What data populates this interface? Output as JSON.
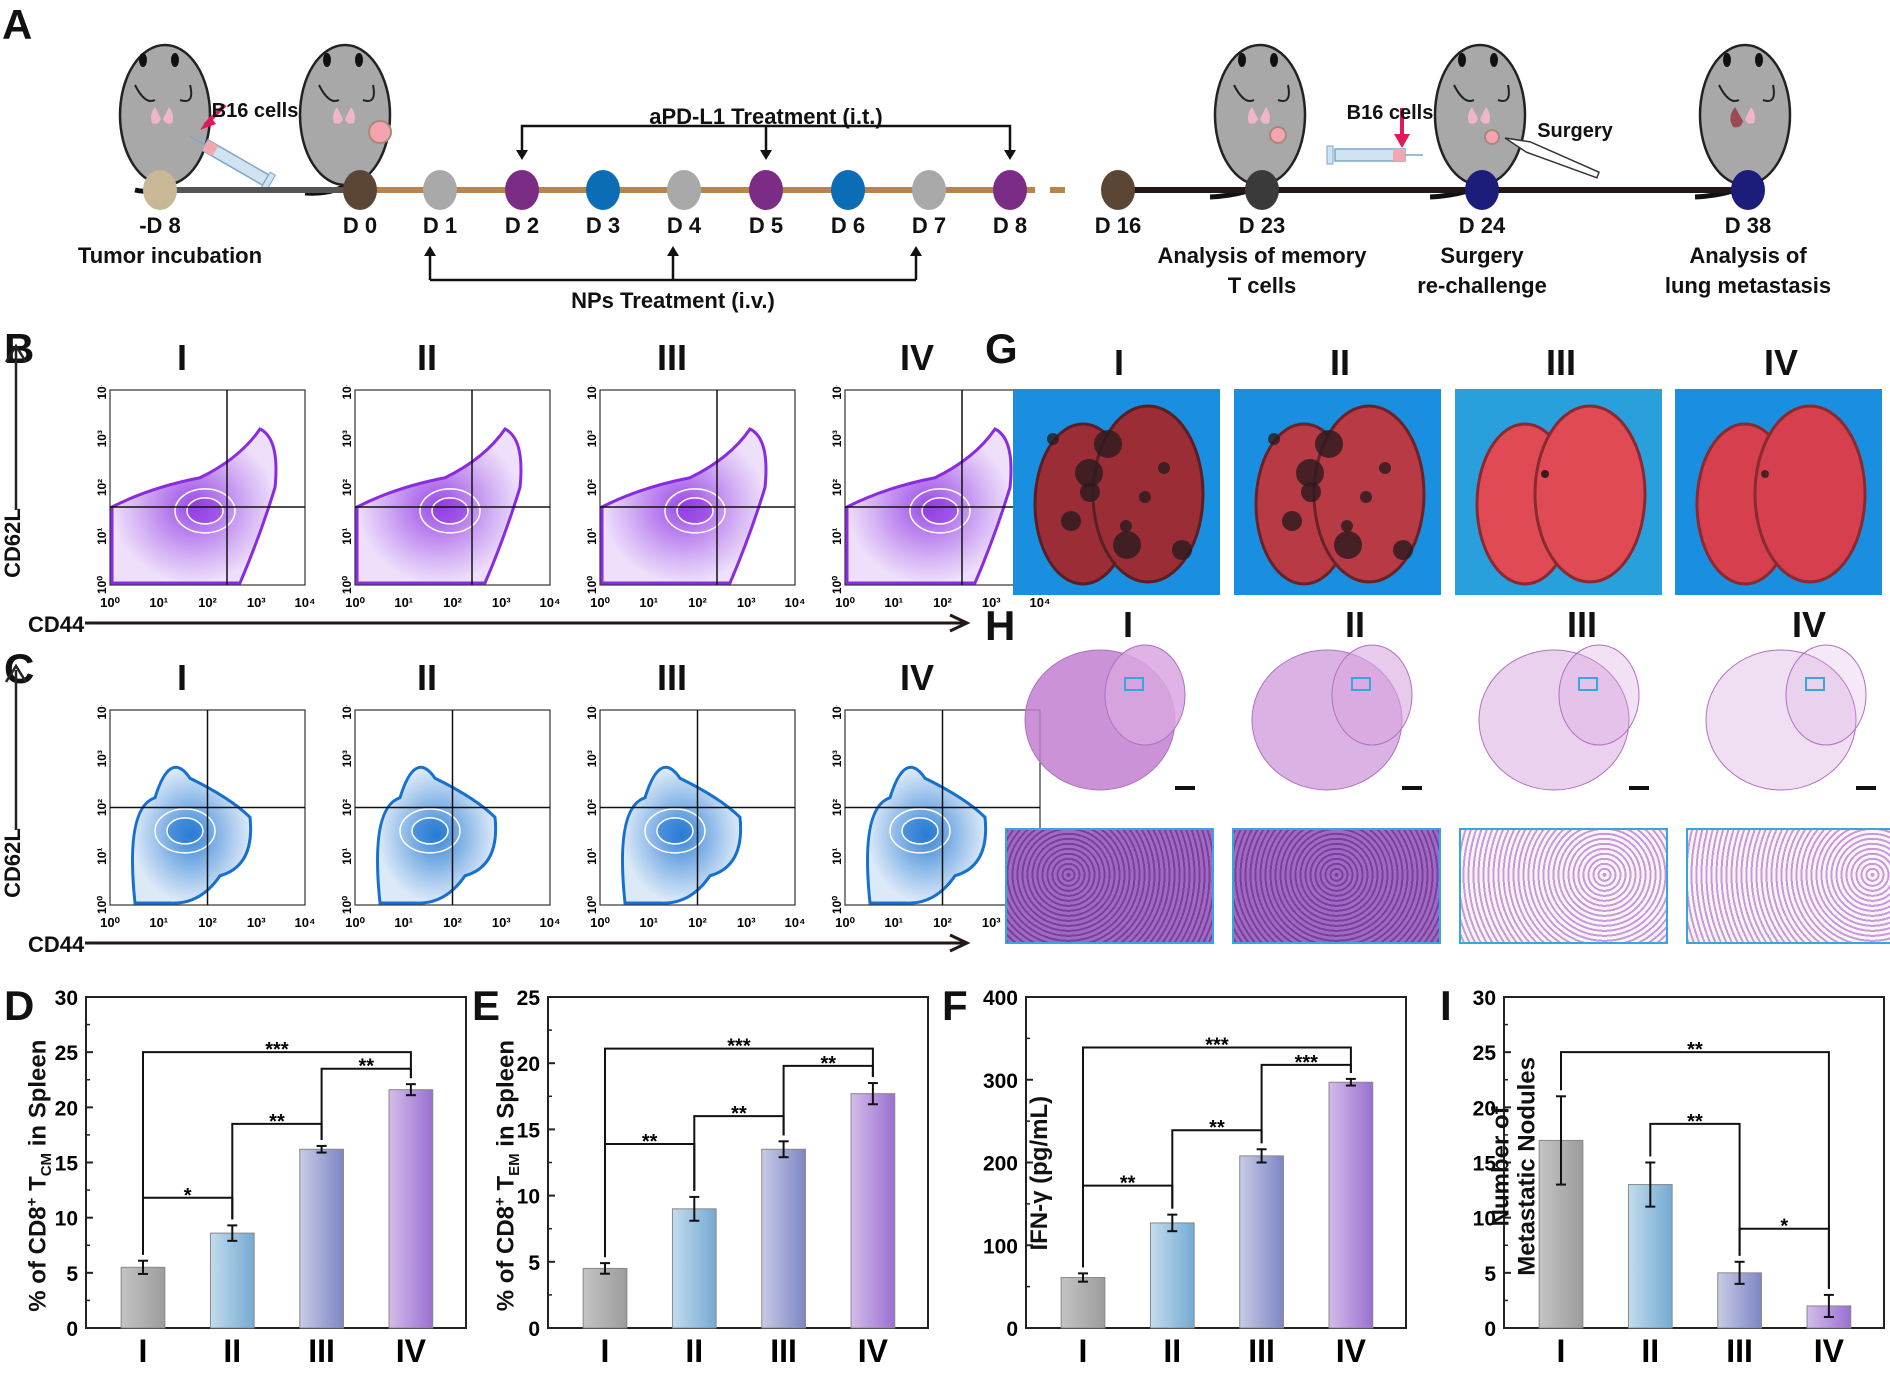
{
  "panel_labels": {
    "A": "A",
    "B": "B",
    "C": "C",
    "D": "D",
    "E": "E",
    "F": "F",
    "G": "G",
    "H": "H",
    "I": "I"
  },
  "groups": [
    "I",
    "II",
    "III",
    "IV"
  ],
  "timeline": {
    "points": [
      {
        "day": "-D 8",
        "color": "#c8b896",
        "desc": [
          "Tumor incubation"
        ]
      },
      {
        "day": "D 0",
        "color": "#5b4636"
      },
      {
        "day": "D 1",
        "color": "#a9a9a9"
      },
      {
        "day": "D 2",
        "color": "#7b2d86"
      },
      {
        "day": "D 3",
        "color": "#0b6db5"
      },
      {
        "day": "D 4",
        "color": "#a9a9a9"
      },
      {
        "day": "D 5",
        "color": "#7b2d86"
      },
      {
        "day": "D 6",
        "color": "#0b6db5"
      },
      {
        "day": "D 7",
        "color": "#a9a9a9"
      },
      {
        "day": "D 8",
        "color": "#7b2d86"
      },
      {
        "day": "D 16",
        "color": "#5b4636"
      },
      {
        "day": "D 23",
        "color": "#3a3a3a",
        "desc": [
          "Analysis of memory",
          "T cells"
        ]
      },
      {
        "day": "D 24",
        "color": "#1c1c7a",
        "desc": [
          "Surgery",
          "re-challenge"
        ]
      },
      {
        "day": "D 38",
        "color": "#1c1c7a",
        "desc": [
          "Analysis of",
          "lung metastasis"
        ]
      }
    ],
    "apdl1_label": "aPD-L1 Treatment (i.t.)",
    "nps_label": "NPs Treatment (i.v.)",
    "b16_label_1": "B16 cells",
    "b16_label_2": "B16 cells",
    "surgery_label": "Surgery",
    "line_colors": {
      "pre": "#555555",
      "treatment": "#b5854a",
      "post": "#231815"
    }
  },
  "flow": {
    "y_label": "CD62L",
    "x_label": "CD44",
    "ticks": [
      "10⁰",
      "10¹",
      "10²",
      "10³",
      "10⁴"
    ],
    "B_color": "#8a2be2",
    "C_color": "#1670d0"
  },
  "chart_data": [
    {
      "id": "D",
      "type": "bar",
      "categories": [
        "I",
        "II",
        "III",
        "IV"
      ],
      "values": [
        5.5,
        8.6,
        16.2,
        21.6
      ],
      "errors": [
        0.6,
        0.7,
        0.3,
        0.5
      ],
      "ylabel": "% of CD8⁺ T_CM in Spleen",
      "ylabel_main": "% of CD8",
      "ylabel_sup": "+",
      "ylabel_T": " T",
      "ylabel_sub": "CM",
      "ylabel_tail": " in Spleen",
      "ylim": [
        0,
        30
      ],
      "yticks": [
        0,
        5,
        10,
        15,
        20,
        25,
        30
      ],
      "significance": [
        {
          "from": 0,
          "to": 1,
          "y": 11.8,
          "label": "*"
        },
        {
          "from": 1,
          "to": 2,
          "y": 18.5,
          "label": "**"
        },
        {
          "from": 2,
          "to": 3,
          "y": 23.5,
          "label": "**"
        },
        {
          "from": 0,
          "to": 3,
          "y": 25,
          "label": "***"
        }
      ]
    },
    {
      "id": "E",
      "type": "bar",
      "categories": [
        "I",
        "II",
        "III",
        "IV"
      ],
      "values": [
        4.5,
        9.0,
        13.5,
        17.7
      ],
      "errors": [
        0.4,
        0.9,
        0.6,
        0.8
      ],
      "ylabel": "% of CD8⁺ T_EM in Spleen",
      "ylabel_main": "% of CD8",
      "ylabel_sup": "+",
      "ylabel_T": " T",
      "ylabel_sub": "EM",
      "ylabel_tail": " in Spleen",
      "ylim": [
        0,
        25
      ],
      "yticks": [
        0,
        5,
        10,
        15,
        20,
        25
      ],
      "significance": [
        {
          "from": 0,
          "to": 1,
          "y": 13.9,
          "label": "**"
        },
        {
          "from": 1,
          "to": 2,
          "y": 16.0,
          "label": "**"
        },
        {
          "from": 2,
          "to": 3,
          "y": 19.8,
          "label": "**"
        },
        {
          "from": 0,
          "to": 3,
          "y": 21.1,
          "label": "***"
        }
      ]
    },
    {
      "id": "F",
      "type": "bar",
      "categories": [
        "I",
        "II",
        "III",
        "IV"
      ],
      "values": [
        61,
        127,
        208,
        297
      ],
      "errors": [
        5,
        10,
        8,
        4
      ],
      "ylabel": "IFN-γ (pg/mL)",
      "ylabel_main": "IFN-γ (pg/mL)",
      "ylim": [
        0,
        400
      ],
      "yticks": [
        0,
        100,
        200,
        300,
        400
      ],
      "significance": [
        {
          "from": 0,
          "to": 1,
          "y": 172,
          "label": "**"
        },
        {
          "from": 1,
          "to": 2,
          "y": 239,
          "label": "**"
        },
        {
          "from": 2,
          "to": 3,
          "y": 318,
          "label": "***"
        },
        {
          "from": 0,
          "to": 3,
          "y": 339,
          "label": "***"
        }
      ]
    },
    {
      "id": "I",
      "type": "bar",
      "categories": [
        "I",
        "II",
        "III",
        "IV"
      ],
      "values": [
        17,
        13,
        5,
        2
      ],
      "errors": [
        4,
        2,
        1,
        1
      ],
      "ylabel": "Number of Metastatic Nodules",
      "ylabel_line1": "Number of",
      "ylabel_line2": "Metastatic Nodules",
      "ylim": [
        0,
        30
      ],
      "yticks": [
        0,
        5,
        10,
        15,
        20,
        25,
        30
      ],
      "significance": [
        {
          "from": 0,
          "to": 3,
          "y": 25,
          "label": "**",
          "cap_down": true
        },
        {
          "from": 1,
          "to": 2,
          "y": 18.5,
          "label": "**",
          "cap_down": true
        },
        {
          "from": 2,
          "to": 3,
          "y": 9,
          "label": "*"
        }
      ]
    }
  ],
  "bar_gradients": [
    [
      "#c4c4c4",
      "#9c9c9c"
    ],
    [
      "#c2dcee",
      "#74aad2"
    ],
    [
      "#c8cbe6",
      "#7d86c4"
    ],
    [
      "#d3bce9",
      "#9a70d2"
    ]
  ]
}
